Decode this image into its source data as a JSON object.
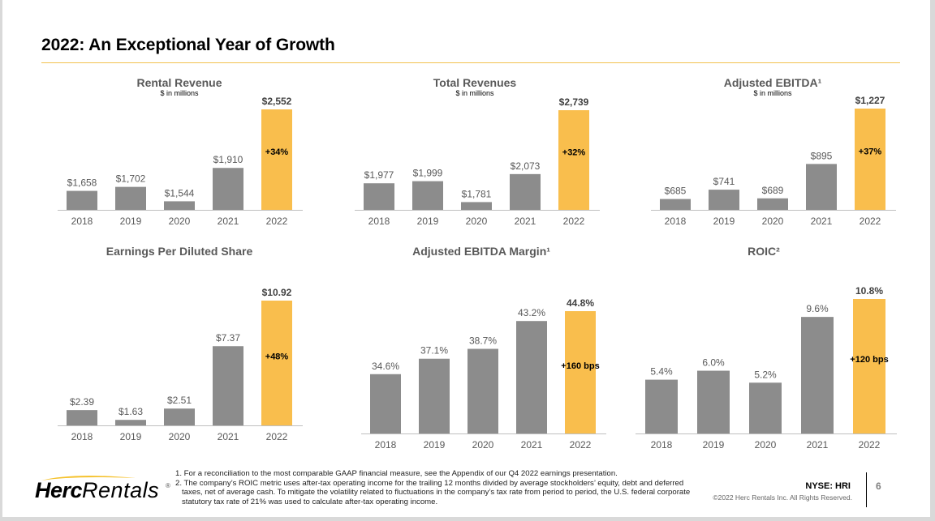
{
  "slide": {
    "title": "2022: An Exceptional Year of Growth",
    "accent_color": "#f2c14e",
    "bar_color": "#8c8c8c",
    "highlight_color": "#f9be4d"
  },
  "chart_data": [
    {
      "type": "bar",
      "title": "Rental Revenue",
      "subtitle": "$ in millions",
      "categories": [
        "2018",
        "2019",
        "2020",
        "2021",
        "2022"
      ],
      "values": [
        1658,
        1702,
        1544,
        1910,
        2552
      ],
      "labels": [
        "$1,658",
        "$1,702",
        "$1,544",
        "$1,910",
        "$2,552"
      ],
      "highlight_index": 4,
      "growth_label": "+34%",
      "ylim": [
        1450,
        2552
      ]
    },
    {
      "type": "bar",
      "title": "Total Revenues",
      "subtitle": "$ in millions",
      "categories": [
        "2018",
        "2019",
        "2020",
        "2021",
        "2022"
      ],
      "values": [
        1977,
        1999,
        1781,
        2073,
        2739
      ],
      "labels": [
        "$1,977",
        "$1,999",
        "$1,781",
        "$2,073",
        "$2,739"
      ],
      "highlight_index": 4,
      "growth_label": "+32%",
      "ylim": [
        1700,
        2739
      ]
    },
    {
      "type": "bar",
      "title": "Adjusted EBITDA¹",
      "subtitle": "$ in millions",
      "categories": [
        "2018",
        "2019",
        "2020",
        "2021",
        "2022"
      ],
      "values": [
        685,
        741,
        689,
        895,
        1227
      ],
      "labels": [
        "$685",
        "$741",
        "$689",
        "$895",
        "$1,227"
      ],
      "highlight_index": 4,
      "growth_label": "+37%",
      "ylim": [
        620,
        1227
      ]
    },
    {
      "type": "bar",
      "title": "Earnings Per Diluted Share",
      "subtitle": "",
      "categories": [
        "2018",
        "2019",
        "2020",
        "2021",
        "2022"
      ],
      "values": [
        2.39,
        1.63,
        2.51,
        7.37,
        10.92
      ],
      "labels": [
        "$2.39",
        "$1.63",
        "$2.51",
        "$7.37",
        "$10.92"
      ],
      "highlight_index": 4,
      "growth_label": "+48%",
      "ylim": [
        1.2,
        10.92
      ]
    },
    {
      "type": "bar",
      "title": "Adjusted EBITDA Margin¹",
      "subtitle": "",
      "categories": [
        "2018",
        "2019",
        "2020",
        "2021",
        "2022"
      ],
      "values": [
        34.6,
        37.1,
        38.7,
        43.2,
        44.8
      ],
      "labels": [
        "34.6%",
        "37.1%",
        "38.7%",
        "43.2%",
        "44.8%"
      ],
      "highlight_index": 4,
      "growth_label": "+160 bps",
      "ylim": [
        25,
        44.8
      ]
    },
    {
      "type": "bar",
      "title": "ROIC²",
      "subtitle": "",
      "categories": [
        "2018",
        "2019",
        "2020",
        "2021",
        "2022"
      ],
      "values": [
        5.4,
        6.0,
        5.2,
        9.6,
        10.8
      ],
      "labels": [
        "5.4%",
        "6.0%",
        "5.2%",
        "9.6%",
        "10.8%"
      ],
      "highlight_index": 4,
      "growth_label": "+120 bps",
      "ylim": [
        1.8,
        10.8
      ]
    }
  ],
  "footer": {
    "logo_bold": "Herc",
    "logo_light": "Rentals",
    "logo_reg": "®",
    "footnote_1": "1. For a reconciliation to the most comparable GAAP financial measure, see the Appendix of our Q4 2022 earnings presentation.",
    "footnote_2": "2. The company’s ROIC metric uses after-tax operating income for the trailing 12 months divided by average stockholders’ equity, debt and deferred taxes, net of average cash. To mitigate the volatility related to fluctuations in the company’s tax rate from period to period, the U.S. federal corporate statutory tax rate of 21% was used to calculate after-tax operating income.",
    "ticker": "NYSE: HRI",
    "copyright": "©2022 Herc Rentals Inc.  All Rights Reserved.",
    "page_number": "6"
  }
}
